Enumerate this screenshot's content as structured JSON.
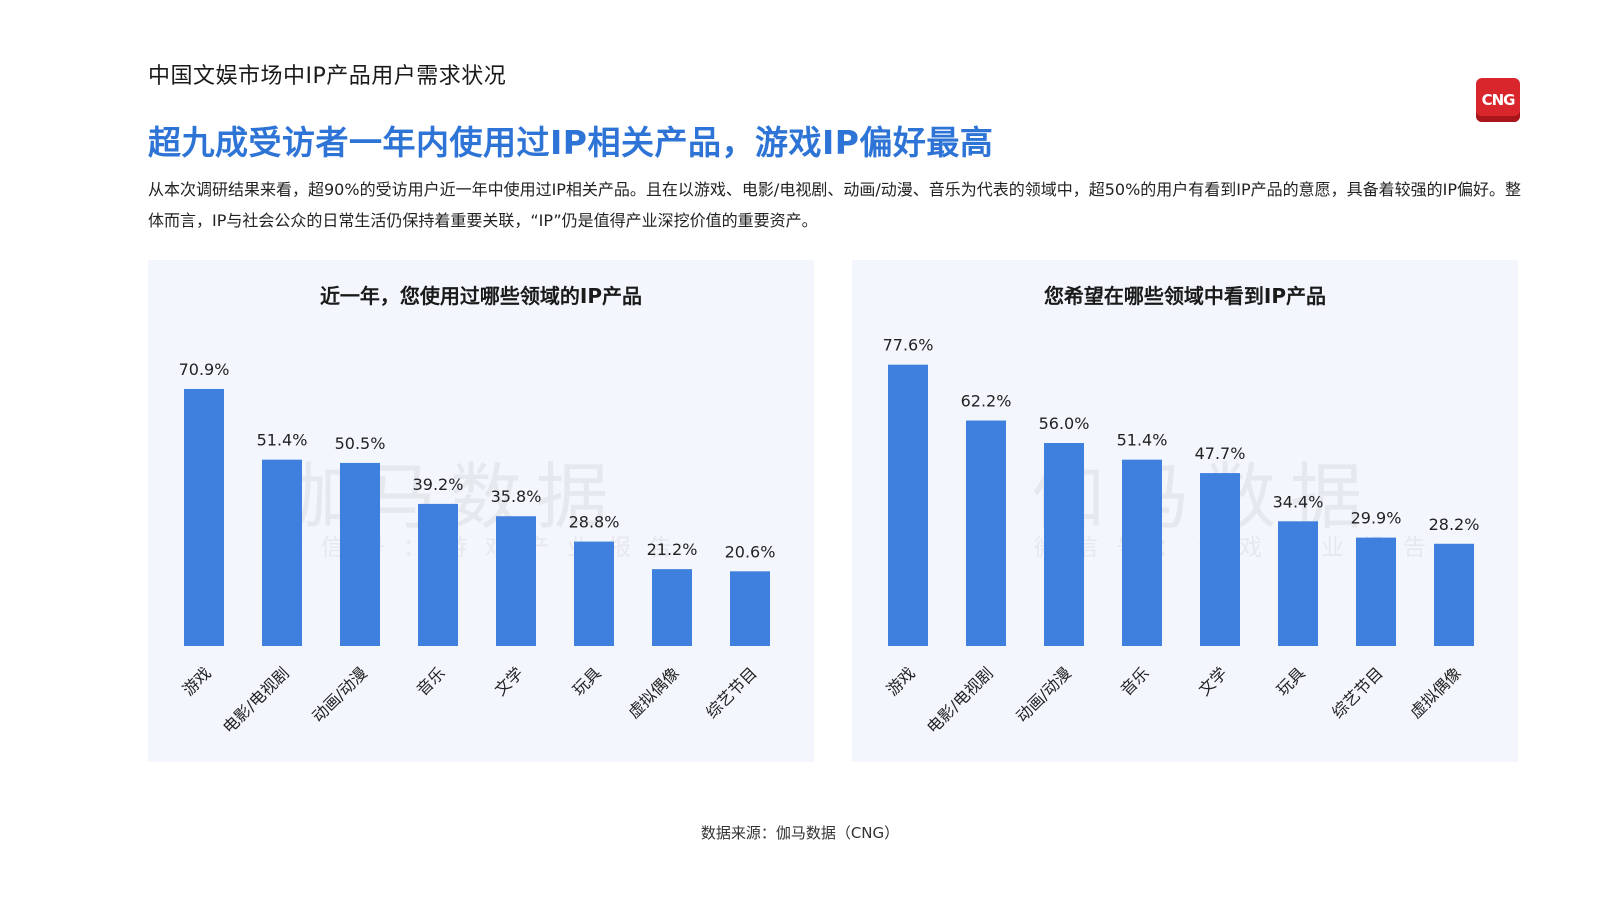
{
  "page": {
    "section_title": "中国文娱市场中IP产品用户需求状况",
    "logo_text": "CNG",
    "headline": "超九成受访者一年内使用过IP相关产品，游戏IP偏好最高",
    "body": "从本次调研结果来看，超90%的受访用户近一年中使用过IP相关产品。且在以游戏、电影/电视剧、动画/动漫、音乐为代表的领域中，超50%的用户有看到IP产品的意愿，具备着较强的IP偏好。整体而言，IP与社会公众的日常生活仍保持着重要关联，“IP”仍是值得产业深挖价值的重要资产。",
    "source": "数据来源：伽马数据（CNG）",
    "watermark_main": "伽马数据",
    "watermark_sub": "微信号：游戏产业报告",
    "accent_color": "#2e74d6",
    "bar_color": "#3f7fde",
    "logo_color": "#d9262c"
  },
  "chart_data": [
    {
      "type": "bar",
      "title": "近一年，您使用过哪些领域的IP产品",
      "categories": [
        "游戏",
        "电影/电视剧",
        "动画/动漫",
        "音乐",
        "文学",
        "玩具",
        "虚拟偶像",
        "综艺节目"
      ],
      "values": [
        70.9,
        51.4,
        50.5,
        39.2,
        35.8,
        28.8,
        21.2,
        20.6
      ],
      "value_suffix": "%",
      "ylim": [
        0,
        80
      ]
    },
    {
      "type": "bar",
      "title": "您希望在哪些领域中看到IP产品",
      "categories": [
        "游戏",
        "电影/电视剧",
        "动画/动漫",
        "音乐",
        "文学",
        "玩具",
        "综艺节目",
        "虚拟偶像"
      ],
      "values": [
        77.6,
        62.2,
        56.0,
        51.4,
        47.7,
        34.4,
        29.9,
        28.2
      ],
      "value_suffix": "%",
      "ylim": [
        0,
        80
      ]
    }
  ]
}
